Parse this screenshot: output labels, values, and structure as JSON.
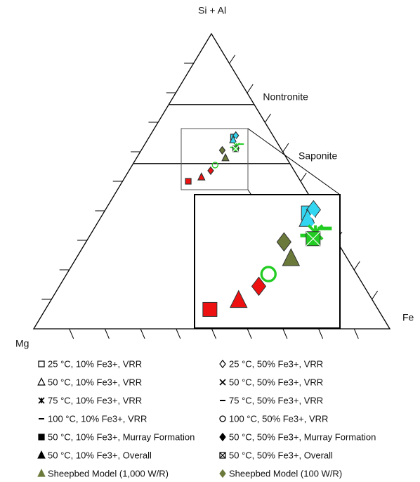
{
  "chart_data": {
    "type": "ternary",
    "vertex_labels": {
      "top": "Si + Al",
      "right": "Fe",
      "left": "Mg"
    },
    "ticks": [
      0.1,
      0.2,
      0.3,
      0.4,
      0.5,
      0.6,
      0.7,
      0.8,
      0.9
    ],
    "reference_lines": [
      {
        "label": "Nontronite",
        "value": 0.76
      },
      {
        "label": "Saponite",
        "value": 0.56
      }
    ],
    "series": [
      {
        "name": "25 °C, 10% Fe3+, VRR",
        "marker": "square",
        "color": "#33d6f0",
        "legend_color": "#000000",
        "x": [
          0.236
        ],
        "values": [
          0.65
        ]
      },
      {
        "name": "25 °C, 50% Fe3+, VRR",
        "marker": "diamond",
        "color": "#33d6f0",
        "legend_color": "#000000",
        "x": [
          0.24
        ],
        "values": [
          0.655
        ]
      },
      {
        "name": "50 °C, 10% Fe3+, VRR",
        "marker": "triangle",
        "color": "#33d6f0",
        "legend_color": "#000000",
        "x": [
          0.24
        ],
        "values": [
          0.64
        ]
      },
      {
        "name": "50 °C, 50% Fe3+, VRR",
        "marker": "x",
        "color": "#ffffff",
        "legend_color": "#000000",
        "x": [
          0.255
        ],
        "values": [
          0.636
        ]
      },
      {
        "name": "75 °C, 10% Fe3+, VRR",
        "marker": "star",
        "color": "#22cc22",
        "legend_color": "#000000",
        "x": [
          0.26
        ],
        "values": [
          0.62
        ]
      },
      {
        "name": "75 °C, 50% Fe3+, VRR",
        "marker": "dash",
        "color": "#22cc22",
        "legend_color": "#000000",
        "x": [
          0.269
        ],
        "values": [
          0.626
        ]
      },
      {
        "name": "100 °C, 10% Fe3+, VRR",
        "marker": "dash",
        "color": "#22cc22",
        "legend_color": "#000000",
        "x": [
          0.252
        ],
        "values": [
          0.615
        ]
      },
      {
        "name": "100 °C, 50% Fe3+, VRR",
        "marker": "circle",
        "color": "#22cc22",
        "legend_color": "#000000",
        "x": [
          0.232
        ],
        "values": [
          0.555
        ]
      },
      {
        "name": "50 °C, 10% Fe3+, Murray Formation",
        "marker": "filled-square",
        "color": "#ee1111",
        "legend_color": "#000000",
        "x": [
          0.184
        ],
        "values": [
          0.5
        ]
      },
      {
        "name": "50 °C, 50% Fe3+, Murray Formation",
        "marker": "filled-diamond",
        "color": "#ee1111",
        "legend_color": "#000000",
        "x": [
          0.229
        ],
        "values": [
          0.536
        ]
      },
      {
        "name": "50 °C, 10% Fe3+, Overall",
        "marker": "filled-triangle",
        "color": "#ee1111",
        "legend_color": "#000000",
        "x": [
          0.214
        ],
        "values": [
          0.514
        ]
      },
      {
        "name": "50 °C, 50% Fe3+, Overall",
        "marker": "xbox",
        "color": "#22cc22",
        "legend_color": "#000000",
        "x": [
          0.262
        ],
        "values": [
          0.61
        ]
      },
      {
        "name": "Sheepbed Model (1,000 W/R)",
        "marker": "filled-triangle",
        "color": "#6b7a3a",
        "legend_color": "#6b7a3a",
        "x": [
          0.249
        ],
        "values": [
          0.579
        ]
      },
      {
        "name": "Sheepbed Model (100 W/R)",
        "marker": "filled-diamond",
        "color": "#6b7a3a",
        "legend_color": "#6b7a3a",
        "x": [
          0.227
        ],
        "values": [
          0.605
        ]
      }
    ]
  }
}
